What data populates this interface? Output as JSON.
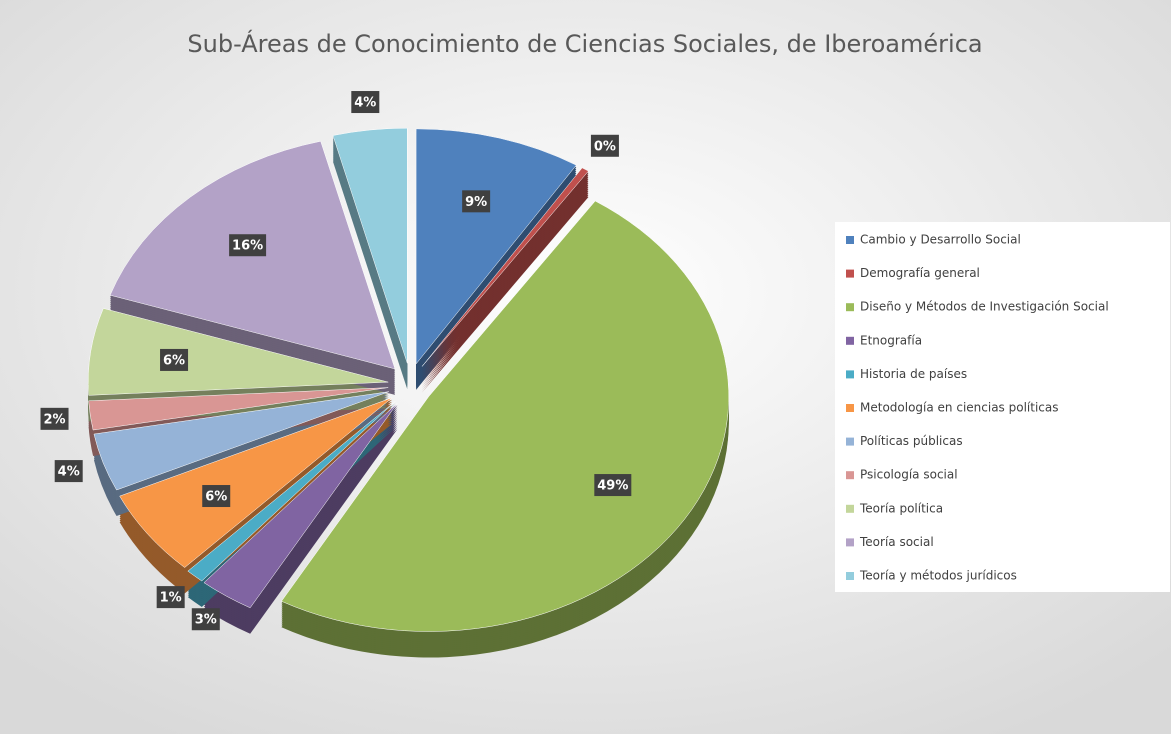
{
  "chart_data": {
    "type": "pie",
    "title": "Sub-Áreas de Conocimiento de Ciencias Sociales, de Iberoamérica",
    "categories": [
      "Cambio y Desarrollo Social",
      "Demografía general",
      "Diseño y Métodos de Investigación Social",
      "Etnografía",
      "Historia de países",
      "Metodología en ciencias políticas",
      "Políticas públicas",
      "Psicología social",
      "Teoría política",
      "Teoría social",
      "Teoría y métodos jurídicos"
    ],
    "values": [
      9,
      0.4,
      49,
      3,
      1,
      6,
      4,
      2,
      6,
      16,
      4
    ],
    "value_labels": [
      "9%",
      "0%",
      "49%",
      "3%",
      "1%",
      "6%",
      "4%",
      "2%",
      "6%",
      "16%",
      "4%"
    ],
    "colors": [
      "#4f81bd",
      "#c0504d",
      "#9bbb59",
      "#8064a2",
      "#4bacc6",
      "#f79646",
      "#95b3d7",
      "#d99694",
      "#c3d69b",
      "#b3a2c7",
      "#93cddd"
    ],
    "legend": "right"
  }
}
